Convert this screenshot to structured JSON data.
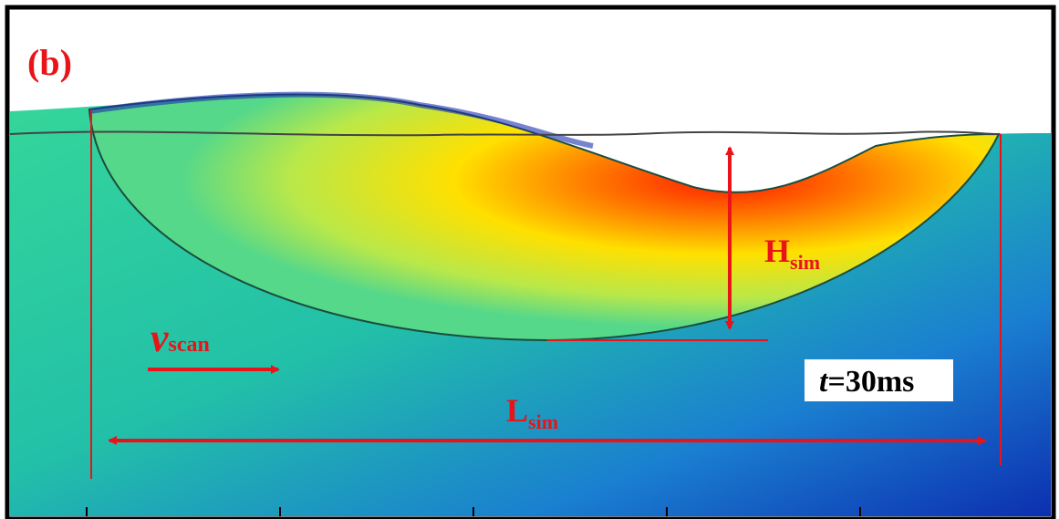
{
  "panel_label": "(b)",
  "labels": {
    "v_scan": {
      "symbol": "v",
      "subscript": "scan"
    },
    "h_sim": {
      "symbol": "H",
      "subscript": "sim"
    },
    "l_sim": {
      "symbol": "L",
      "subscript": "sim"
    },
    "time": {
      "symbol": "t",
      "text": "=30ms"
    }
  }
}
